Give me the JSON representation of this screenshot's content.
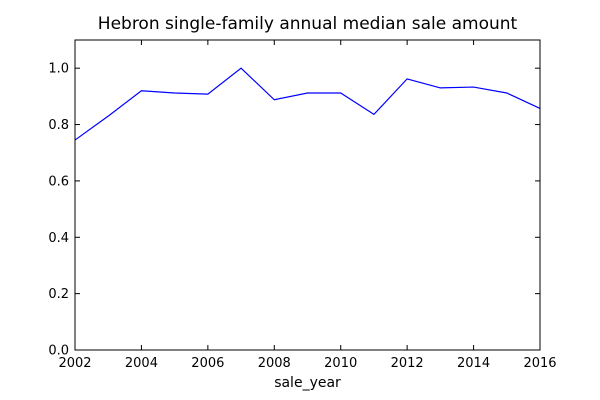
{
  "chart_data": {
    "type": "line",
    "title": "Hebron single-family annual median sale amount",
    "xlabel": "sale_year",
    "ylabel": "",
    "xlim": [
      2002,
      2016
    ],
    "ylim": [
      0.0,
      1.1
    ],
    "x_ticks": [
      2002,
      2004,
      2006,
      2008,
      2010,
      2012,
      2014,
      2016
    ],
    "y_ticks": [
      0.0,
      0.2,
      0.4,
      0.6,
      0.8,
      1.0
    ],
    "y_tick_labels": [
      "0.0",
      "0.2",
      "0.4",
      "0.6",
      "0.8",
      "1.0"
    ],
    "grid": false,
    "series": [
      {
        "color": "#0000ff",
        "x": [
          2002,
          2003,
          2004,
          2005,
          2006,
          2007,
          2008,
          2009,
          2010,
          2011,
          2012,
          2013,
          2014,
          2015,
          2016
        ],
        "y": [
          0.745,
          0.83,
          0.92,
          0.912,
          0.908,
          1.0,
          0.888,
          0.912,
          0.912,
          0.836,
          0.962,
          0.93,
          0.933,
          0.912,
          0.857
        ]
      }
    ]
  }
}
